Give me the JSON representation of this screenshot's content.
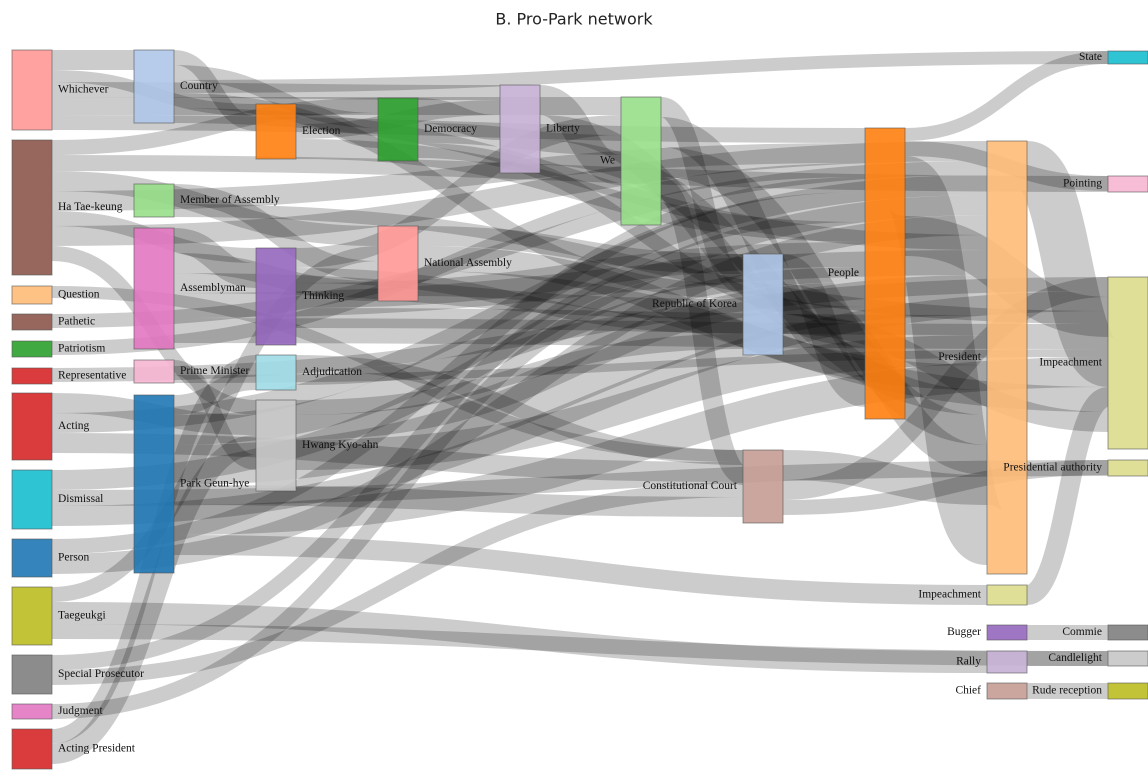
{
  "chart_data": {
    "type": "sankey",
    "title": "B. Pro-Park network",
    "nodes": [
      {
        "name": "Whichever",
        "color": "#ff9896",
        "value": 80
      },
      {
        "name": "Ha Tae-keung",
        "color": "#8c564b",
        "value": 135
      },
      {
        "name": "Question",
        "color": "#ffbb78",
        "value": 18
      },
      {
        "name": "Pathetic",
        "color": "#8c564b",
        "value": 16
      },
      {
        "name": "Patriotism",
        "color": "#2ca02c",
        "value": 16
      },
      {
        "name": "Representative",
        "color": "#d62728",
        "value": 16
      },
      {
        "name": "Acting",
        "color": "#d62728",
        "value": 67
      },
      {
        "name": "Dismissal",
        "color": "#17becf",
        "value": 59
      },
      {
        "name": "Person",
        "color": "#1f77b4",
        "value": 38
      },
      {
        "name": "Taegeukgi",
        "color": "#bcbd22",
        "value": 58
      },
      {
        "name": "Special Prosecutor",
        "color": "#7f7f7f",
        "value": 39
      },
      {
        "name": "Judgment",
        "color": "#e377c2",
        "value": 15
      },
      {
        "name": "Acting President",
        "color": "#d62728",
        "value": 40
      },
      {
        "name": "Country",
        "color": "#aec7e8",
        "value": 73
      },
      {
        "name": "Member of Assembly",
        "color": "#98df8a",
        "value": 33
      },
      {
        "name": "Assemblyman",
        "color": "#e377c2",
        "value": 121
      },
      {
        "name": "Prime Minister",
        "color": "#f7b6d2",
        "value": 23
      },
      {
        "name": "Park Geun-hye",
        "color": "#1f77b4",
        "value": 178
      },
      {
        "name": "Election",
        "color": "#ff7f0e",
        "value": 55
      },
      {
        "name": "Thinking",
        "color": "#9467bd",
        "value": 97
      },
      {
        "name": "Adjudication",
        "color": "#9edae5",
        "value": 35
      },
      {
        "name": "Hwang Kyo-ahn",
        "color": "#c7c7c7",
        "value": 91
      },
      {
        "name": "Democracy",
        "color": "#2ca02c",
        "value": 63
      },
      {
        "name": "National Assembly",
        "color": "#ff9896",
        "value": 75
      },
      {
        "name": "Liberty",
        "color": "#c5b0d5",
        "value": 88
      },
      {
        "name": "We",
        "color": "#98df8a",
        "value": 128
      },
      {
        "name": "Republic of Korea",
        "color": "#aec7e8",
        "value": 101
      },
      {
        "name": "Constitutional Court",
        "color": "#c49c94",
        "value": 73
      },
      {
        "name": "People",
        "color": "#ff7f0e",
        "value": 291
      },
      {
        "name": "President",
        "color": "#ffbb78",
        "value": 433
      },
      {
        "name": "Impeachment",
        "color": "#dbdb8d",
        "value": 20
      },
      {
        "name": "Bugger",
        "color": "#9467bd",
        "value": 15
      },
      {
        "name": "Rally",
        "color": "#c5b0d5",
        "value": 22
      },
      {
        "name": "Chief",
        "color": "#c49c94",
        "value": 16
      },
      {
        "name": "State",
        "color": "#17becf",
        "value": 13
      },
      {
        "name": "Pointing",
        "color": "#f7b6d2",
        "value": 16
      },
      {
        "name": "Impeachment",
        "color": "#dbdb8d",
        "value": 172
      },
      {
        "name": "Presidential authority",
        "color": "#dbdb8d",
        "value": 16
      },
      {
        "name": "Commie",
        "color": "#7f7f7f",
        "value": 15
      },
      {
        "name": "Candlelight",
        "color": "#c7c7c7",
        "value": 15
      },
      {
        "name": "Rude reception",
        "color": "#bcbd22",
        "value": 16
      }
    ],
    "links": [
      {
        "source": 0,
        "target": 13,
        "value": 20
      },
      {
        "source": 0,
        "target": 18,
        "value": 12
      },
      {
        "source": 0,
        "target": 24,
        "value": 15
      },
      {
        "source": 0,
        "target": 25,
        "value": 18
      },
      {
        "source": 0,
        "target": 28,
        "value": 15
      },
      {
        "source": 1,
        "target": 22,
        "value": 15
      },
      {
        "source": 1,
        "target": 35,
        "value": 16
      },
      {
        "source": 1,
        "target": 23,
        "value": 20
      },
      {
        "source": 1,
        "target": 28,
        "value": 20
      },
      {
        "source": 1,
        "target": 19,
        "value": 15
      },
      {
        "source": 1,
        "target": 29,
        "value": 20
      },
      {
        "source": 1,
        "target": 21,
        "value": 15
      },
      {
        "source": 2,
        "target": 27,
        "value": 12
      },
      {
        "source": 3,
        "target": 29,
        "value": 14
      },
      {
        "source": 4,
        "target": 28,
        "value": 14
      },
      {
        "source": 5,
        "target": 36,
        "value": 14
      },
      {
        "source": 6,
        "target": 21,
        "value": 20
      },
      {
        "source": 6,
        "target": 29,
        "value": 20
      },
      {
        "source": 6,
        "target": 27,
        "value": 20
      },
      {
        "source": 7,
        "target": 29,
        "value": 20
      },
      {
        "source": 7,
        "target": 37,
        "value": 16
      },
      {
        "source": 7,
        "target": 36,
        "value": 20
      },
      {
        "source": 8,
        "target": 28,
        "value": 15
      },
      {
        "source": 8,
        "target": 29,
        "value": 20
      },
      {
        "source": 9,
        "target": 23,
        "value": 15
      },
      {
        "source": 9,
        "target": 32,
        "value": 22
      },
      {
        "source": 9,
        "target": 39,
        "value": 15
      },
      {
        "source": 10,
        "target": 26,
        "value": 15
      },
      {
        "source": 10,
        "target": 27,
        "value": 15
      },
      {
        "source": 11,
        "target": 26,
        "value": 15
      },
      {
        "source": 12,
        "target": 20,
        "value": 15
      },
      {
        "source": 12,
        "target": 21,
        "value": 20
      },
      {
        "source": 13,
        "target": 18,
        "value": 15
      },
      {
        "source": 13,
        "target": 22,
        "value": 15
      },
      {
        "source": 13,
        "target": 34,
        "value": 13
      },
      {
        "source": 13,
        "target": 26,
        "value": 15
      },
      {
        "source": 13,
        "target": 29,
        "value": 15
      },
      {
        "source": 14,
        "target": 23,
        "value": 20
      },
      {
        "source": 14,
        "target": 36,
        "value": 13
      },
      {
        "source": 15,
        "target": 19,
        "value": 25
      },
      {
        "source": 15,
        "target": 23,
        "value": 20
      },
      {
        "source": 15,
        "target": 26,
        "value": 20
      },
      {
        "source": 15,
        "target": 29,
        "value": 25
      },
      {
        "source": 15,
        "target": 36,
        "value": 25
      },
      {
        "source": 16,
        "target": 21,
        "value": 15
      },
      {
        "source": 16,
        "target": 36,
        "value": 8
      },
      {
        "source": 17,
        "target": 20,
        "value": 20
      },
      {
        "source": 17,
        "target": 28,
        "value": 30
      },
      {
        "source": 17,
        "target": 29,
        "value": 40
      },
      {
        "source": 17,
        "target": 27,
        "value": 20
      },
      {
        "source": 17,
        "target": 36,
        "value": 30
      },
      {
        "source": 17,
        "target": 30,
        "value": 20
      },
      {
        "source": 18,
        "target": 22,
        "value": 20
      },
      {
        "source": 18,
        "target": 24,
        "value": 15
      },
      {
        "source": 18,
        "target": 28,
        "value": 20
      },
      {
        "source": 19,
        "target": 25,
        "value": 20
      },
      {
        "source": 19,
        "target": 26,
        "value": 15
      },
      {
        "source": 19,
        "target": 28,
        "value": 25
      },
      {
        "source": 19,
        "target": 29,
        "value": 20
      },
      {
        "source": 20,
        "target": 27,
        "value": 15
      },
      {
        "source": 20,
        "target": 28,
        "value": 15
      },
      {
        "source": 21,
        "target": 26,
        "value": 15
      },
      {
        "source": 21,
        "target": 28,
        "value": 25
      },
      {
        "source": 21,
        "target": 29,
        "value": 30
      },
      {
        "source": 22,
        "target": 24,
        "value": 25
      },
      {
        "source": 22,
        "target": 25,
        "value": 20
      },
      {
        "source": 22,
        "target": 28,
        "value": 15
      },
      {
        "source": 23,
        "target": 26,
        "value": 20
      },
      {
        "source": 23,
        "target": 29,
        "value": 25
      },
      {
        "source": 23,
        "target": 36,
        "value": 25
      },
      {
        "source": 24,
        "target": 25,
        "value": 30
      },
      {
        "source": 24,
        "target": 28,
        "value": 25
      },
      {
        "source": 24,
        "target": 29,
        "value": 25
      },
      {
        "source": 25,
        "target": 26,
        "value": 20
      },
      {
        "source": 25,
        "target": 28,
        "value": 30
      },
      {
        "source": 25,
        "target": 29,
        "value": 30
      },
      {
        "source": 25,
        "target": 27,
        "value": 20
      },
      {
        "source": 26,
        "target": 28,
        "value": 30
      },
      {
        "source": 26,
        "target": 29,
        "value": 30
      },
      {
        "source": 26,
        "target": 36,
        "value": 20
      },
      {
        "source": 27,
        "target": 29,
        "value": 30
      },
      {
        "source": 27,
        "target": 36,
        "value": 20
      },
      {
        "source": 27,
        "target": 37,
        "value": 15
      },
      {
        "source": 28,
        "target": 34,
        "value": 13
      },
      {
        "source": 28,
        "target": 35,
        "value": 15
      },
      {
        "source": 28,
        "target": 29,
        "value": 60
      },
      {
        "source": 28,
        "target": 36,
        "value": 40
      },
      {
        "source": 29,
        "target": 36,
        "value": 50
      },
      {
        "source": 30,
        "target": 36,
        "value": 20
      },
      {
        "source": 31,
        "target": 38,
        "value": 15
      },
      {
        "source": 32,
        "target": 39,
        "value": 15
      },
      {
        "source": 33,
        "target": 40,
        "value": 16
      }
    ]
  }
}
